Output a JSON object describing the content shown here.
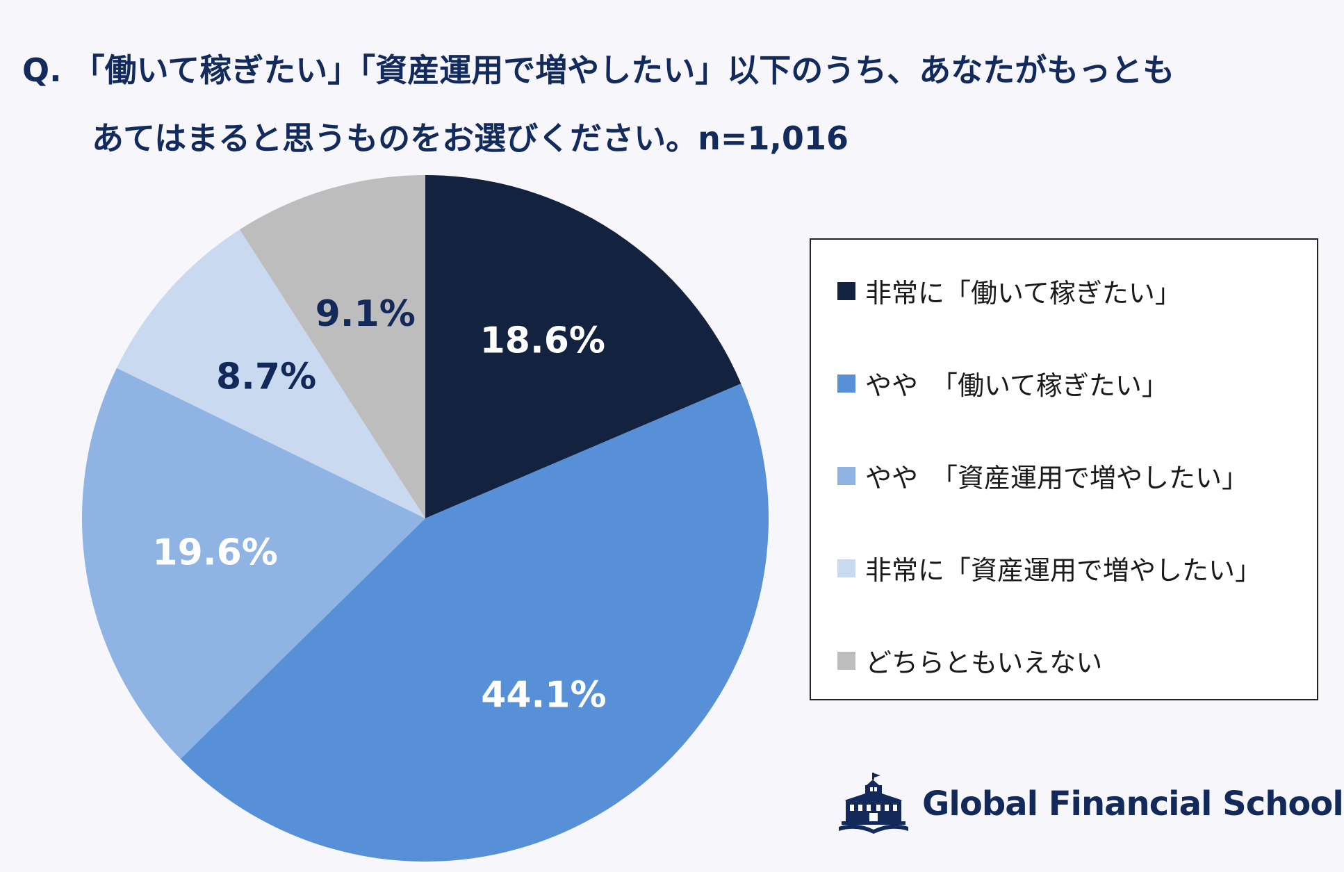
{
  "title": {
    "line1": "Q. 「働いて稼ぎたい」「資産運用で増やしたい」以下のうち、あなたがもっとも",
    "line2": "あてはまると思うものをお選びください。n=1,016"
  },
  "chart_data": {
    "type": "pie",
    "title": "Q. 「働いて稼ぎたい」「資産運用で増やしたい」以下のうち、あなたがもっともあてはまると思うものをお選びください。n=1,016",
    "slices": [
      {
        "label": "非常に「働いて稼ぎたい」",
        "value": 18.6,
        "display": "18.6%",
        "color": "#13233f",
        "label_color": "#ffffff"
      },
      {
        "label": "やや　「働いて稼ぎたい」",
        "value": 44.1,
        "display": "44.1%",
        "color": "#5790d6",
        "label_color": "#ffffff"
      },
      {
        "label": "やや　「資産運用で増やしたい」",
        "value": 19.6,
        "display": "19.6%",
        "color": "#8fb3e2",
        "label_color": "#ffffff"
      },
      {
        "label": "非常に「資産運用で増やしたい」",
        "value": 8.7,
        "display": "8.7%",
        "color": "#c8d9f0",
        "label_color": "#13295a"
      },
      {
        "label": "どちらともいえない",
        "value": 9.1,
        "display": "9.1%",
        "color": "#bdbdbd",
        "label_color": "#13295a"
      }
    ],
    "start": "12 o'clock",
    "direction": "clockwise",
    "legend_position": "right"
  },
  "legend": {
    "items": [
      {
        "text": "非常に「働いて稼ぎたい」",
        "color": "#13233f"
      },
      {
        "text": "やや　「働いて稼ぎたい」",
        "color": "#5790d6"
      },
      {
        "text": "やや　「資産運用で増やしたい」",
        "color": "#8fb3e2"
      },
      {
        "text": "非常に「資産運用で増やしたい」",
        "color": "#c8d9f0"
      },
      {
        "text": "どちらともいえない",
        "color": "#bdbdbd"
      }
    ]
  },
  "brand": {
    "name": "Global Financial School",
    "icon": "school-building-book-logo-icon",
    "color": "#13295a"
  }
}
